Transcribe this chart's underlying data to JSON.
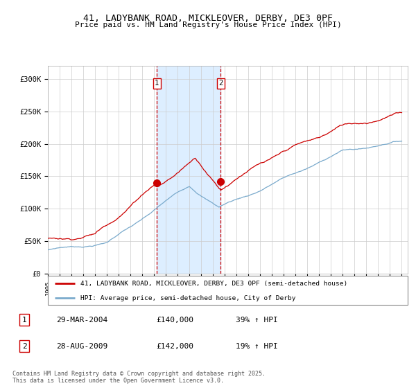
{
  "title_line1": "41, LADYBANK ROAD, MICKLEOVER, DERBY, DE3 0PF",
  "title_line2": "Price paid vs. HM Land Registry's House Price Index (HPI)",
  "red_label": "41, LADYBANK ROAD, MICKLEOVER, DERBY, DE3 0PF (semi-detached house)",
  "blue_label": "HPI: Average price, semi-detached house, City of Derby",
  "sale1_date": "29-MAR-2004",
  "sale1_price": 140000,
  "sale1_hpi_text": "39% ↑ HPI",
  "sale2_date": "28-AUG-2009",
  "sale2_price": 142000,
  "sale2_hpi_text": "19% ↑ HPI",
  "footer": "Contains HM Land Registry data © Crown copyright and database right 2025.\nThis data is licensed under the Open Government Licence v3.0.",
  "ylim_min": 0,
  "ylim_max": 320000,
  "xlim_min": 1995,
  "xlim_max": 2025.5,
  "background_color": "#ffffff",
  "red_color": "#cc0000",
  "blue_color": "#7aaacc",
  "shade_color": "#ddeeff",
  "vline_color": "#cc0000",
  "grid_color": "#cccccc",
  "sale1_year": 2004.24,
  "sale2_year": 2009.65
}
